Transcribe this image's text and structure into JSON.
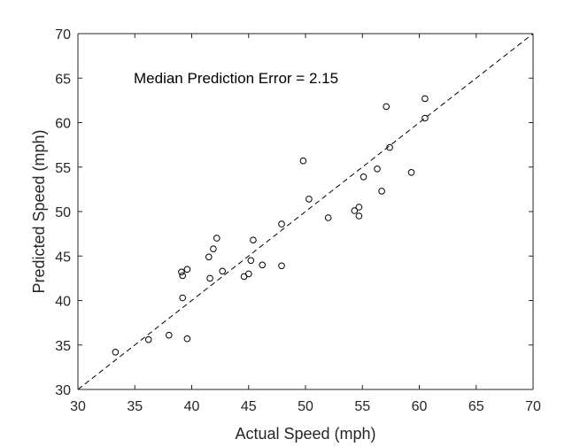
{
  "chart_data": {
    "type": "scatter",
    "title": "",
    "xlabel": "Actual Speed (mph)",
    "ylabel": "Predicted Speed (mph)",
    "xlim": [
      30,
      70
    ],
    "ylim": [
      30,
      70
    ],
    "xticks": [
      30,
      35,
      40,
      45,
      50,
      55,
      60,
      65,
      70
    ],
    "yticks": [
      30,
      35,
      40,
      45,
      50,
      55,
      60,
      65,
      70
    ],
    "grid": false,
    "annotation": "Median Prediction Error = 2.15",
    "reference_line": {
      "style": "dashed",
      "from": [
        30,
        30
      ],
      "to": [
        70,
        70
      ]
    },
    "series": [
      {
        "name": "predictions",
        "marker": "circle-open",
        "points": [
          [
            33.3,
            34.2
          ],
          [
            36.2,
            35.6
          ],
          [
            38.0,
            36.1
          ],
          [
            39.6,
            35.7
          ],
          [
            39.2,
            40.3
          ],
          [
            39.1,
            43.2
          ],
          [
            39.2,
            42.8
          ],
          [
            39.6,
            43.5
          ],
          [
            41.6,
            42.5
          ],
          [
            41.5,
            44.9
          ],
          [
            41.9,
            45.8
          ],
          [
            42.2,
            47.0
          ],
          [
            42.7,
            43.3
          ],
          [
            44.6,
            42.7
          ],
          [
            45.0,
            43.0
          ],
          [
            45.2,
            44.5
          ],
          [
            45.4,
            46.8
          ],
          [
            46.2,
            44.0
          ],
          [
            47.9,
            48.6
          ],
          [
            47.9,
            43.9
          ],
          [
            49.8,
            55.7
          ],
          [
            50.3,
            51.4
          ],
          [
            52.0,
            49.3
          ],
          [
            54.3,
            50.1
          ],
          [
            54.7,
            50.5
          ],
          [
            54.7,
            49.5
          ],
          [
            55.1,
            53.9
          ],
          [
            56.3,
            54.8
          ],
          [
            56.7,
            52.3
          ],
          [
            57.1,
            61.8
          ],
          [
            57.4,
            57.2
          ],
          [
            59.3,
            54.4
          ],
          [
            60.5,
            62.7
          ],
          [
            60.5,
            60.5
          ]
        ]
      }
    ]
  }
}
